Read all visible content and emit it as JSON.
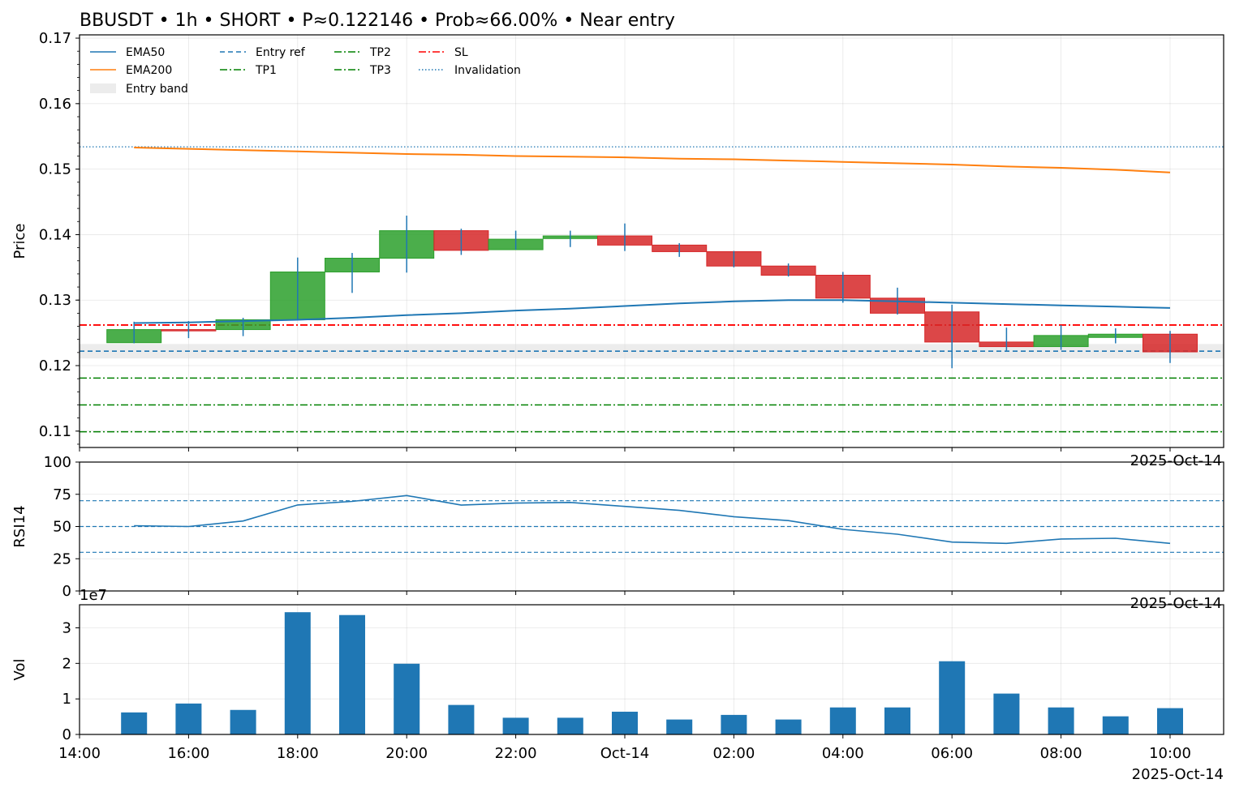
{
  "chart_data": {
    "title": "BBUSDT • 1h • SHORT • P≈0.122146 • Prob≈66.00% • Near entry",
    "x_ticks": [
      "14:00",
      "16:00",
      "18:00",
      "20:00",
      "22:00",
      "Oct-14",
      "02:00",
      "04:00",
      "06:00",
      "08:00",
      "10:00"
    ],
    "x_corner_label": "2025-Oct-14",
    "price_panel": {
      "type": "candlestick",
      "ylabel": "Price",
      "ylim": [
        0.1075,
        0.1705
      ],
      "y_ticks": [
        "0.11",
        "0.12",
        "0.13",
        "0.14",
        "0.15",
        "0.16",
        "0.17"
      ],
      "time": [
        "15:00",
        "16:00",
        "17:00",
        "18:00",
        "19:00",
        "20:00",
        "21:00",
        "22:00",
        "23:00",
        "00:00",
        "01:00",
        "02:00",
        "03:00",
        "04:00",
        "05:00",
        "06:00",
        "07:00",
        "08:00",
        "09:00",
        "10:00"
      ],
      "open": [
        0.1235,
        0.1255,
        0.1255,
        0.127,
        0.1343,
        0.1364,
        0.1406,
        0.1377,
        0.1394,
        0.1398,
        0.1384,
        0.1374,
        0.1352,
        0.1338,
        0.1303,
        0.1282,
        0.1236,
        0.1229,
        0.1243,
        0.1248
      ],
      "close": [
        0.1255,
        0.1253,
        0.127,
        0.1343,
        0.1364,
        0.1406,
        0.1376,
        0.1393,
        0.1398,
        0.1384,
        0.1374,
        0.1352,
        0.1338,
        0.1303,
        0.128,
        0.1236,
        0.1229,
        0.1246,
        0.1248,
        0.1221
      ],
      "high": [
        0.1267,
        0.1268,
        0.1273,
        0.1365,
        0.1372,
        0.1429,
        0.1409,
        0.1406,
        0.1406,
        0.1417,
        0.1387,
        0.1375,
        0.1356,
        0.1343,
        0.1319,
        0.1293,
        0.1258,
        0.1262,
        0.1257,
        0.1253
      ],
      "low": [
        0.1234,
        0.1242,
        0.1245,
        0.1269,
        0.1311,
        0.1342,
        0.1369,
        0.1377,
        0.1381,
        0.1375,
        0.1366,
        0.135,
        0.1336,
        0.1296,
        0.1278,
        0.1196,
        0.1223,
        0.1224,
        0.1234,
        0.1204
      ],
      "ema50": [
        0.1265,
        0.1266,
        0.1268,
        0.127,
        0.1273,
        0.1277,
        0.128,
        0.1284,
        0.1287,
        0.1291,
        0.1295,
        0.1298,
        0.13,
        0.13,
        0.1298,
        0.1296,
        0.1294,
        0.1292,
        0.129,
        0.1288
      ],
      "ema200": [
        0.1533,
        0.1531,
        0.1529,
        0.1527,
        0.1525,
        0.1523,
        0.1522,
        0.152,
        0.1519,
        0.1518,
        0.1516,
        0.1515,
        0.1513,
        0.1511,
        0.1509,
        0.1507,
        0.1504,
        0.1502,
        0.1499,
        0.1495
      ],
      "levels": {
        "entry_ref": 0.1222,
        "entry_band": [
          0.1211,
          0.1233
        ],
        "tp1": 0.1181,
        "tp2": 0.114,
        "tp3": 0.1099,
        "sl": 0.1262,
        "invalidation": 0.1534
      },
      "legend": {
        "position": "top-left",
        "items": [
          "EMA50",
          "EMA200",
          "Entry band",
          "Entry ref",
          "TP1",
          "TP2",
          "TP3",
          "SL",
          "Invalidation"
        ]
      },
      "grid": true
    },
    "rsi_panel": {
      "type": "line",
      "ylabel": "RSI14",
      "ylim": [
        0,
        100
      ],
      "y_ticks": [
        "0",
        "25",
        "50",
        "75",
        "100"
      ],
      "values": [
        50.6,
        50.0,
        54.3,
        66.7,
        69.5,
        74.0,
        66.6,
        68.2,
        68.7,
        65.6,
        62.5,
        57.6,
        54.6,
        47.8,
        44.0,
        37.9,
        36.9,
        40.3,
        40.9,
        36.9
      ],
      "ref_lines": [
        70,
        50,
        30
      ],
      "grid": true
    },
    "volume_panel": {
      "type": "bar",
      "ylabel": "Vol",
      "scale_label": "1e7",
      "ylim": [
        0,
        3.65
      ],
      "y_ticks": [
        "0",
        "1",
        "2",
        "3"
      ],
      "values": [
        0.62,
        0.87,
        0.69,
        3.44,
        3.36,
        1.99,
        0.83,
        0.47,
        0.47,
        0.64,
        0.42,
        0.55,
        0.42,
        0.76,
        0.76,
        2.06,
        1.15,
        0.76,
        0.51,
        0.74
      ],
      "grid": true
    },
    "colors": {
      "up": "#2ca02c",
      "down": "#d62728",
      "ema50": "#1f77b4",
      "ema200": "#ff7f0e",
      "entry": "#1f77b4",
      "tp": "#008000",
      "sl": "#ff0000",
      "invalidation": "#1f77b4",
      "rsi": "#1f77b4",
      "volume": "#1f77b4",
      "band": "#e0e0e0"
    }
  }
}
